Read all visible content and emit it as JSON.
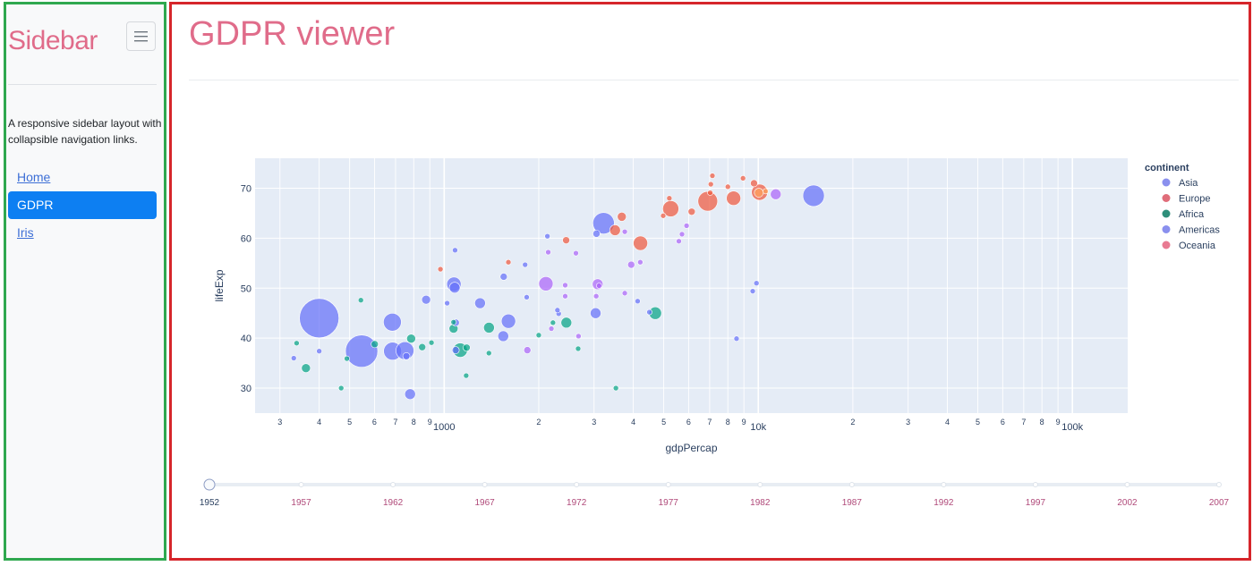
{
  "sidebar": {
    "title": "Sidebar",
    "toggle_icon": "hamburger-menu-icon",
    "description": "A responsive sidebar layout with collapsible navigation links.",
    "nav": [
      {
        "label": "Home",
        "active": false
      },
      {
        "label": "GDPR",
        "active": true
      },
      {
        "label": "Iris",
        "active": false
      }
    ]
  },
  "main": {
    "title": "GDPR viewer"
  },
  "chart_data": {
    "type": "scatter",
    "xlabel": "gdpPercap",
    "ylabel": "lifeExp",
    "x_scale": "log",
    "xlim": [
      250,
      150000
    ],
    "ylim": [
      25,
      76
    ],
    "x_major_ticks": [
      {
        "value": 1000,
        "label": "1000"
      },
      {
        "value": 10000,
        "label": "10k"
      },
      {
        "value": 100000,
        "label": "100k"
      }
    ],
    "y_ticks": [
      30,
      40,
      50,
      60,
      70
    ],
    "legend_title": "continent",
    "legend_position": "right",
    "series": [
      {
        "name": "Asia",
        "color": "#636efa",
        "points": [
          [
            779,
            28.8,
            6
          ],
          [
            1602,
            43.4,
            8
          ],
          [
            1810,
            54.7,
            3
          ],
          [
            685,
            37.4,
            10
          ],
          [
            400,
            44.0,
            22
          ],
          [
            3054,
            60.9,
            4
          ],
          [
            546,
            37.4,
            18
          ],
          [
            750,
            37.5,
            10
          ],
          [
            3035,
            45.0,
            6
          ],
          [
            4130,
            47.4,
            3
          ],
          [
            400,
            37.4,
            3
          ],
          [
            3217,
            63.0,
            12
          ],
          [
            1089,
            43.1,
            4
          ],
          [
            1547,
            52.3,
            4
          ],
          [
            1080,
            50.1,
            6
          ],
          [
            9867,
            51.0,
            3
          ],
          [
            332,
            36.0,
            3
          ],
          [
            684,
            43.2,
            10
          ],
          [
            758,
            36.4,
            4
          ],
          [
            1542,
            40.4,
            6
          ],
          [
            1088,
            37.6,
            4
          ],
          [
            8527,
            39.9,
            3
          ],
          [
            2315,
            44.9,
            3
          ],
          [
            1831,
            48.2,
            3
          ],
          [
            2131,
            60.4,
            3
          ],
          [
            1083,
            57.6,
            3
          ],
          [
            1022,
            47.0,
            3
          ],
          [
            2294,
            45.6,
            3
          ],
          [
            1074,
            50.8,
            8
          ],
          [
            876,
            47.7,
            5
          ],
          [
            1301,
            47.0,
            6
          ],
          [
            15000,
            68.5,
            12
          ],
          [
            9600,
            49.4,
            3
          ],
          [
            4500,
            45.2,
            3
          ]
        ]
      },
      {
        "name": "Europe",
        "color": "#ef553b",
        "points": [
          [
            1601,
            55.2,
            3
          ],
          [
            6137,
            65.3,
            4
          ],
          [
            8343,
            68.0,
            8
          ],
          [
            973,
            53.8,
            3
          ],
          [
            2445,
            59.6,
            4
          ],
          [
            3677,
            64.3,
            5
          ],
          [
            7062,
            70.8,
            3
          ],
          [
            9692,
            71.0,
            4
          ],
          [
            6905,
            67.4,
            11
          ],
          [
            8941,
            72.0,
            3
          ],
          [
            10095,
            69.2,
            9
          ],
          [
            5263,
            65.9,
            9
          ],
          [
            5210,
            68.0,
            3
          ],
          [
            4216,
            59.0,
            8
          ],
          [
            7144,
            72.5,
            3
          ],
          [
            7030,
            69.1,
            3
          ],
          [
            4981,
            64.5,
            3
          ],
          [
            8000,
            70.3,
            3
          ],
          [
            3500,
            61.6,
            6
          ]
        ]
      },
      {
        "name": "Africa",
        "color": "#00a383",
        "points": [
          [
            2449,
            43.1,
            6
          ],
          [
            3521,
            30.0,
            3
          ],
          [
            851,
            38.2,
            4
          ],
          [
            543,
            47.6,
            3
          ],
          [
            339,
            39.0,
            3
          ],
          [
            1071,
            41.9,
            5
          ],
          [
            1179,
            38.1,
            4
          ],
          [
            1071,
            43.2,
            3
          ],
          [
            1389,
            42.1,
            6
          ],
          [
            2670,
            37.9,
            3
          ],
          [
            1175,
            32.5,
            3
          ],
          [
            1125,
            37.6,
            8
          ],
          [
            363,
            34.0,
            5
          ],
          [
            1388,
            37.0,
            3
          ],
          [
            470,
            30.0,
            3
          ],
          [
            601,
            38.8,
            4
          ],
          [
            911,
            39.1,
            3
          ],
          [
            2000,
            40.6,
            3
          ],
          [
            4700,
            45.0,
            7
          ],
          [
            490,
            35.9,
            3
          ],
          [
            2220,
            43.1,
            3
          ],
          [
            785,
            39.9,
            5
          ]
        ]
      },
      {
        "name": "Americas",
        "color": "#ab63fa",
        "points": [
          [
            5911,
            62.5,
            3
          ],
          [
            2677,
            40.4,
            3
          ],
          [
            2108,
            50.9,
            8
          ],
          [
            11367,
            68.8,
            6
          ],
          [
            3940,
            54.7,
            4
          ],
          [
            2144,
            57.2,
            3
          ],
          [
            2627,
            57.0,
            3
          ],
          [
            5587,
            59.4,
            3
          ],
          [
            2428,
            48.4,
            3
          ],
          [
            3048,
            48.4,
            3
          ],
          [
            2428,
            50.6,
            3
          ],
          [
            1840,
            37.6,
            4
          ],
          [
            2194,
            41.9,
            3
          ],
          [
            3758,
            61.3,
            3
          ],
          [
            3081,
            50.8,
            6
          ],
          [
            3112,
            50.5,
            3
          ],
          [
            5716,
            60.8,
            3
          ],
          [
            4210,
            55.2,
            3
          ],
          [
            3758,
            49.0,
            3
          ]
        ]
      },
      {
        "name": "Oceania",
        "color": "#ffa15a",
        "points": [
          [
            10040,
            69.1,
            5
          ],
          [
            10557,
            69.4,
            3
          ]
        ]
      }
    ]
  },
  "legend": [
    {
      "name": "Asia",
      "color": "#8a90ee"
    },
    {
      "name": "Europe",
      "color": "#e06d7a"
    },
    {
      "name": "Africa",
      "color": "#2e8f7a"
    },
    {
      "name": "Americas",
      "color": "#8a90ee"
    },
    {
      "name": "Oceania",
      "color": "#e87a92"
    }
  ],
  "slider": {
    "years": [
      "1952",
      "1957",
      "1962",
      "1967",
      "1972",
      "1977",
      "1982",
      "1987",
      "1992",
      "1997",
      "2002",
      "2007"
    ],
    "selected": "1952"
  }
}
